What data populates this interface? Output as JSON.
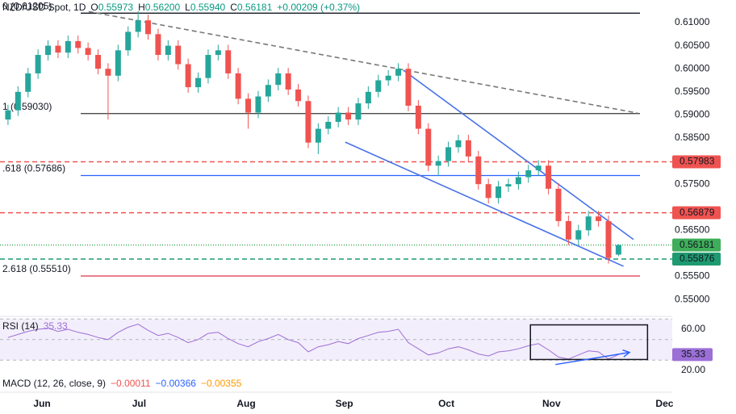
{
  "chart_data": {
    "type": "candlestick",
    "title": "NZD/USD Spot, 1D",
    "ohlc_header": {
      "labels": [
        "O",
        "H",
        "L",
        "C"
      ],
      "values": [
        0.55973,
        0.562,
        0.5594,
        0.56181
      ],
      "value_labels": [
        "0.55973",
        "0.56200",
        "0.55940",
        "0.56181"
      ],
      "change": "+0.00209 (+0.37%)"
    },
    "open": [
      0.589,
      0.591,
      0.595,
      0.599,
      0.603,
      0.605,
      0.6035,
      0.606,
      0.6045,
      0.603,
      0.6,
      0.5985,
      0.604,
      0.608,
      0.6105,
      0.6075,
      0.603,
      0.605,
      0.601,
      0.596,
      0.598,
      0.603,
      0.604,
      0.599,
      0.5935,
      0.5905,
      0.594,
      0.5965,
      0.599,
      0.5955,
      0.593,
      0.584,
      0.587,
      0.5885,
      0.5905,
      0.589,
      0.5925,
      0.595,
      0.5975,
      0.5985,
      0.6,
      0.592,
      0.587,
      0.579,
      0.58,
      0.583,
      0.5845,
      0.581,
      0.575,
      0.572,
      0.5745,
      0.575,
      0.5765,
      0.578,
      0.579,
      0.574,
      0.567,
      0.563,
      0.565,
      0.568,
      0.567,
      0.55973
    ],
    "high": [
      0.5922,
      0.5962,
      0.6002,
      0.6042,
      0.6062,
      0.6062,
      0.6072,
      0.6072,
      0.6057,
      0.6042,
      0.6012,
      0.6052,
      0.6092,
      0.6125,
      0.6117,
      0.6087,
      0.6062,
      0.6062,
      0.6022,
      0.5992,
      0.6042,
      0.6052,
      0.6052,
      0.6002,
      0.5947,
      0.5952,
      0.5977,
      0.6002,
      0.6002,
      0.5967,
      0.5942,
      0.5882,
      0.5897,
      0.5917,
      0.5917,
      0.5937,
      0.5962,
      0.5987,
      0.5997,
      0.6012,
      0.6012,
      0.5932,
      0.5882,
      0.5812,
      0.5842,
      0.5857,
      0.5857,
      0.5822,
      0.5762,
      0.5757,
      0.5762,
      0.5777,
      0.5792,
      0.5802,
      0.5802,
      0.5752,
      0.5682,
      0.5662,
      0.5692,
      0.5692,
      0.5682,
      0.562
    ],
    "low": [
      0.5878,
      0.5898,
      0.5938,
      0.5978,
      0.6018,
      0.6023,
      0.6023,
      0.6033,
      0.6018,
      0.5988,
      0.589,
      0.5973,
      0.6028,
      0.6068,
      0.6063,
      0.6018,
      0.6018,
      0.5998,
      0.5948,
      0.5948,
      0.5968,
      0.6018,
      0.5978,
      0.5923,
      0.587,
      0.5893,
      0.5928,
      0.5953,
      0.5943,
      0.5918,
      0.5828,
      0.5815,
      0.5858,
      0.5873,
      0.5878,
      0.5878,
      0.5913,
      0.5938,
      0.5963,
      0.5973,
      0.5908,
      0.5858,
      0.5778,
      0.5768,
      0.5788,
      0.5818,
      0.5798,
      0.5738,
      0.5708,
      0.5708,
      0.5733,
      0.5738,
      0.5753,
      0.5768,
      0.5728,
      0.5658,
      0.5618,
      0.5618,
      0.5638,
      0.5658,
      0.5578,
      0.5594
    ],
    "close": [
      0.591,
      0.595,
      0.599,
      0.603,
      0.605,
      0.6035,
      0.606,
      0.6045,
      0.603,
      0.6,
      0.5985,
      0.604,
      0.608,
      0.6105,
      0.6075,
      0.603,
      0.605,
      0.601,
      0.596,
      0.598,
      0.603,
      0.604,
      0.599,
      0.5935,
      0.5905,
      0.594,
      0.5965,
      0.599,
      0.5955,
      0.593,
      0.584,
      0.587,
      0.5885,
      0.5905,
      0.589,
      0.5925,
      0.595,
      0.5975,
      0.5985,
      0.6,
      0.592,
      0.587,
      0.579,
      0.58,
      0.583,
      0.5845,
      0.581,
      0.575,
      0.572,
      0.5745,
      0.575,
      0.5765,
      0.578,
      0.579,
      0.574,
      0.567,
      0.563,
      0.565,
      0.568,
      0.567,
      0.559,
      0.56181
    ],
    "up_color": "#26a69a",
    "down_color": "#ef5350",
    "xlim": [
      -0.8,
      67.5
    ],
    "xticks": [
      {
        "value": 3.4,
        "label": "Jun"
      },
      {
        "value": 13.1,
        "label": "Jul"
      },
      {
        "value": 23.8,
        "label": "Aug"
      },
      {
        "value": 33.6,
        "label": "Sep"
      },
      {
        "value": 43.8,
        "label": "Oct"
      },
      {
        "value": 54.3,
        "label": "Nov"
      },
      {
        "value": 65.6,
        "label": "Dec"
      }
    ],
    "ylim": [
      0.5467,
      0.6149
    ],
    "yticks": [
      {
        "value": 0.61,
        "label": "0.61000"
      },
      {
        "value": 0.605,
        "label": "0.60500"
      },
      {
        "value": 0.6,
        "label": "0.60000"
      },
      {
        "value": 0.595,
        "label": "0.59500"
      },
      {
        "value": 0.59,
        "label": "0.59000"
      },
      {
        "value": 0.585,
        "label": "0.58500"
      },
      {
        "value": 0.575,
        "label": "0.57500"
      },
      {
        "value": 0.565,
        "label": "0.56500"
      },
      {
        "value": 0.555,
        "label": "0.55500"
      },
      {
        "value": 0.55,
        "label": "0.55000"
      }
    ],
    "fib_levels": [
      {
        "label": "0 (0.61205)",
        "value": 0.61205,
        "color": "#131722",
        "label_color": "#9598a1"
      },
      {
        "label": "1 (0.59030)",
        "value": 0.5903,
        "color": "#4a4a4a",
        "label_color": "#787b86"
      },
      {
        "label": ".618 (0.57686)",
        "value": 0.57686,
        "color": "#2962ff",
        "label_color": "#2962ff"
      },
      {
        "label": "2.618 (0.55510)",
        "value": 0.5551,
        "color": "#e0314b",
        "label_color": "#e0314b"
      }
    ],
    "price_lines": [
      {
        "value": 0.57983,
        "color": "#ef5350",
        "style": "dashed"
      },
      {
        "value": 0.56879,
        "color": "#ef5350",
        "style": "dashed"
      },
      {
        "value": 0.56181,
        "color": "#3fae5a",
        "style": "dotted"
      },
      {
        "value": 0.55876,
        "color": "#1e9a70",
        "style": "dashed"
      }
    ],
    "trendlines": [
      {
        "x": [
          8.06,
          62.9
        ],
        "y": [
          0.6124,
          0.5904
        ],
        "color": "#787878",
        "style": "dashed"
      },
      {
        "x": [
          39.5,
          62.5
        ],
        "y": [
          0.5997,
          0.563
        ],
        "color": "#4a73e8",
        "style": "solid"
      },
      {
        "x": [
          33.7,
          61.5
        ],
        "y": [
          0.5841,
          0.5572
        ],
        "color": "#4a73e8",
        "style": "solid"
      }
    ],
    "rsi": {
      "title": "RSI (14)",
      "color": "#9c6fd6",
      "values": [
        52,
        55,
        58,
        60,
        61,
        58,
        60,
        57,
        55,
        52,
        50,
        57,
        62,
        65,
        59,
        54,
        56,
        52,
        47,
        50,
        56,
        57,
        51,
        46,
        43,
        48,
        51,
        55,
        50,
        47,
        38,
        43,
        45,
        48,
        46,
        51,
        54,
        57,
        58,
        60,
        47,
        41,
        35,
        37,
        41,
        43,
        40,
        36,
        34,
        38,
        39,
        41,
        44,
        46,
        40,
        33,
        31,
        35,
        39,
        38,
        31,
        35.33
      ],
      "ylim": [
        17.6,
        71.8
      ],
      "yticks": [
        {
          "value": 60,
          "label": "60.00"
        },
        {
          "value": 20,
          "label": "20.00"
        }
      ],
      "band": [
        30,
        70
      ],
      "levels": [
        70,
        50,
        30
      ],
      "box": {
        "x": [
          52.2,
          63.9
        ],
        "y": [
          64.3,
          30.6
        ]
      },
      "arrow": {
        "x": [
          54.7,
          62.1
        ],
        "y": [
          25.7,
          37.5
        ],
        "color": "#2962ff"
      }
    },
    "macd": {
      "title": "MACD (12, 26, close, 9)",
      "values": [
        -0.00011,
        -0.00366,
        -0.00355
      ],
      "value_labels": [
        "−0.00011",
        "−0.00366",
        "−0.00355"
      ],
      "colors": [
        "#ef5350",
        "#2962ff",
        "#ff9800"
      ]
    }
  }
}
